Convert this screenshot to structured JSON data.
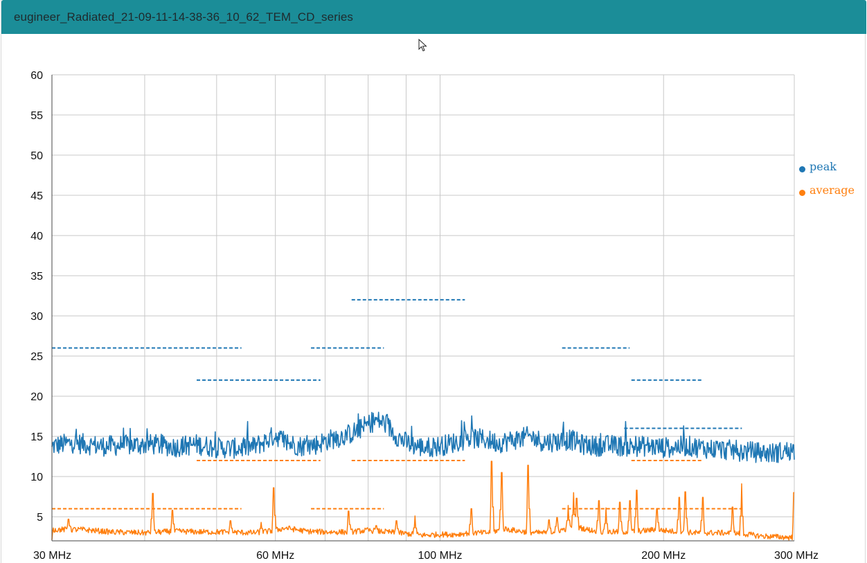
{
  "window": {
    "title": "eugineer_Radiated_21-09-11-14-38-36_10_62_TEM_CD_series"
  },
  "colors": {
    "titlebar": "#1b8d98",
    "peak": "#1f77b4",
    "average": "#ff7f0e",
    "grid": "#c8c8c8"
  },
  "chart_data": {
    "type": "line",
    "x_scale": "log",
    "xlim": [
      30,
      300
    ],
    "ylim": [
      2,
      60
    ],
    "y_ticks": [
      5,
      10,
      15,
      20,
      25,
      30,
      35,
      40,
      45,
      50,
      55,
      60
    ],
    "x_ticks": [
      {
        "value": 30,
        "label": "30 MHz"
      },
      {
        "value": 60,
        "label": "60 MHz"
      },
      {
        "value": 100,
        "label": "100 MHz"
      },
      {
        "value": 200,
        "label": "200 MHz"
      },
      {
        "value": 300,
        "label": "300 MHz"
      }
    ],
    "x_gridlines": [
      30,
      40,
      50,
      60,
      70,
      80,
      90,
      100,
      200,
      300
    ],
    "legend": [
      {
        "name": "peak",
        "color": "#1f77b4"
      },
      {
        "name": "average",
        "color": "#ff7f0e"
      }
    ],
    "series": [
      {
        "name": "peak",
        "color": "#1f77b4",
        "points": [
          [
            30,
            13.8
          ],
          [
            32,
            14.2
          ],
          [
            35,
            13.8
          ],
          [
            38,
            13.9
          ],
          [
            41,
            14.0
          ],
          [
            44,
            13.7
          ],
          [
            47,
            14.0
          ],
          [
            50,
            13.6
          ],
          [
            53,
            13.5
          ],
          [
            56,
            13.7
          ],
          [
            58,
            14.3
          ],
          [
            60,
            15.2
          ],
          [
            62,
            14.2
          ],
          [
            65,
            13.8
          ],
          [
            68,
            14.0
          ],
          [
            71,
            14.6
          ],
          [
            74,
            15.0
          ],
          [
            77,
            15.6
          ],
          [
            80,
            16.5
          ],
          [
            82,
            17.0
          ],
          [
            84,
            16.7
          ],
          [
            86,
            15.8
          ],
          [
            88,
            14.8
          ],
          [
            91,
            14.0
          ],
          [
            95,
            13.6
          ],
          [
            100,
            13.8
          ],
          [
            105,
            14.3
          ],
          [
            110,
            14.8
          ],
          [
            115,
            14.6
          ],
          [
            120,
            14.2
          ],
          [
            126,
            14.6
          ],
          [
            132,
            15.0
          ],
          [
            138,
            14.3
          ],
          [
            145,
            14.4
          ],
          [
            150,
            14.6
          ],
          [
            155,
            14.0
          ],
          [
            162,
            13.8
          ],
          [
            170,
            13.9
          ],
          [
            180,
            13.7
          ],
          [
            190,
            13.8
          ],
          [
            200,
            13.6
          ],
          [
            215,
            13.8
          ],
          [
            230,
            13.5
          ],
          [
            245,
            13.3
          ],
          [
            260,
            13.1
          ],
          [
            280,
            12.9
          ],
          [
            300,
            13.3
          ]
        ]
      },
      {
        "name": "average",
        "color": "#ff7f0e",
        "points": [
          [
            30,
            3.4
          ],
          [
            33,
            3.4
          ],
          [
            36,
            3.1
          ],
          [
            40,
            3.0
          ],
          [
            44,
            3.2
          ],
          [
            48,
            3.1
          ],
          [
            52,
            3.1
          ],
          [
            56,
            3.0
          ],
          [
            59,
            3.2
          ],
          [
            62,
            3.6
          ],
          [
            66,
            3.2
          ],
          [
            70,
            3.1
          ],
          [
            75,
            3.1
          ],
          [
            80,
            3.3
          ],
          [
            85,
            3.1
          ],
          [
            90,
            2.9
          ],
          [
            95,
            2.7
          ],
          [
            100,
            2.8
          ],
          [
            105,
            2.8
          ],
          [
            110,
            3.0
          ],
          [
            116,
            3.0
          ],
          [
            122,
            3.5
          ],
          [
            128,
            3.2
          ],
          [
            135,
            3.0
          ],
          [
            140,
            3.0
          ],
          [
            148,
            3.5
          ],
          [
            152,
            3.8
          ],
          [
            158,
            3.4
          ],
          [
            165,
            3.1
          ],
          [
            175,
            3.1
          ],
          [
            185,
            3.2
          ],
          [
            195,
            3.4
          ],
          [
            205,
            3.2
          ],
          [
            220,
            3.0
          ],
          [
            240,
            3.0
          ],
          [
            255,
            2.9
          ],
          [
            270,
            2.6
          ],
          [
            300,
            2.4
          ]
        ],
        "spikes": [
          [
            31.6,
            4.7
          ],
          [
            41.0,
            7.9
          ],
          [
            43.6,
            5.8
          ],
          [
            52.2,
            4.5
          ],
          [
            57.4,
            4.3
          ],
          [
            59.7,
            8.6
          ],
          [
            75.3,
            5.7
          ],
          [
            82.0,
            3.9
          ],
          [
            87.4,
            4.5
          ],
          [
            92.5,
            5.1
          ],
          [
            110.1,
            6.0
          ],
          [
            117.4,
            11.9
          ],
          [
            121.0,
            10.5
          ],
          [
            131.4,
            11.4
          ],
          [
            140.2,
            4.6
          ],
          [
            143.7,
            4.9
          ],
          [
            148.8,
            6.4
          ],
          [
            151.3,
            8.0
          ],
          [
            152.8,
            7.3
          ],
          [
            163.6,
            7.0
          ],
          [
            167.3,
            6.1
          ],
          [
            174.7,
            6.8
          ],
          [
            180.1,
            7.0
          ],
          [
            183.9,
            8.3
          ],
          [
            196.0,
            6.0
          ],
          [
            209.9,
            7.4
          ],
          [
            214.0,
            8.1
          ],
          [
            225.8,
            7.4
          ],
          [
            247.7,
            6.2
          ],
          [
            254.8,
            9.1
          ],
          [
            299.8,
            8.0
          ]
        ]
      }
    ],
    "limit_lines": [
      {
        "series": "peak",
        "x": [
          30,
          54
        ],
        "y": 26
      },
      {
        "series": "peak",
        "x": [
          47,
          69
        ],
        "y": 22
      },
      {
        "series": "peak",
        "x": [
          67,
          84
        ],
        "y": 26
      },
      {
        "series": "peak",
        "x": [
          76,
          108
        ],
        "y": 32
      },
      {
        "series": "peak",
        "x": [
          146,
          180
        ],
        "y": 26
      },
      {
        "series": "peak",
        "x": [
          181,
          226
        ],
        "y": 22
      },
      {
        "series": "peak",
        "x": [
          177,
          255
        ],
        "y": 16
      },
      {
        "series": "average",
        "x": [
          30,
          54
        ],
        "y": 6
      },
      {
        "series": "average",
        "x": [
          47,
          69
        ],
        "y": 12
      },
      {
        "series": "average",
        "x": [
          67,
          84
        ],
        "y": 6
      },
      {
        "series": "average",
        "x": [
          76,
          108
        ],
        "y": 12
      },
      {
        "series": "average",
        "x": [
          146,
          255
        ],
        "y": 6
      },
      {
        "series": "average",
        "x": [
          181,
          226
        ],
        "y": 12
      }
    ]
  }
}
